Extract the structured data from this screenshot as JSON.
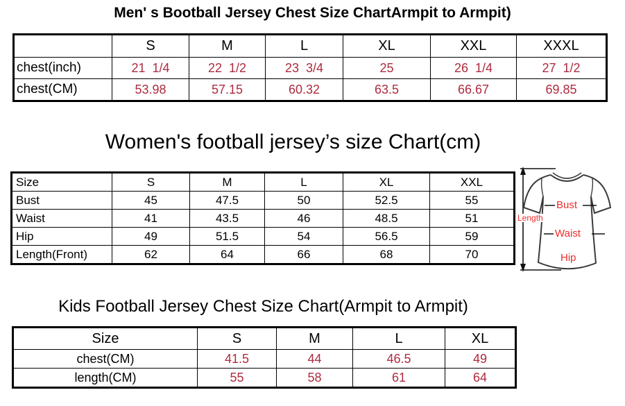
{
  "colors": {
    "table_value_red": "#AE2B3E",
    "diagram_label_red": "#EE2B28",
    "text_black": "#000000",
    "border_black": "#000000"
  },
  "chart_data": [
    {
      "type": "table",
      "title": "Men' s Bootball Jersey Chest Size ChartArmpit to Armpit)",
      "columns": [
        "",
        "S",
        "M",
        "L",
        "XL",
        "XXL",
        "XXXL"
      ],
      "rows": [
        {
          "label": "chest(inch)",
          "values": [
            "21  1/4",
            "22  1/2",
            "23  3/4",
            "25",
            "26  1/4",
            "27  1/2"
          ]
        },
        {
          "label": "chest(CM)",
          "values": [
            "53.98",
            "57.15",
            "60.32",
            "63.5",
            "66.67",
            "69.85"
          ]
        }
      ],
      "value_color": "#AE2B3E"
    },
    {
      "type": "table",
      "title": "Women's football jersey’s size Chart(cm)",
      "columns": [
        "Size",
        "S",
        "M",
        "L",
        "XL",
        "XXL"
      ],
      "rows": [
        {
          "label": "Bust",
          "values": [
            "45",
            "47.5",
            "50",
            "52.5",
            "55"
          ]
        },
        {
          "label": "Waist",
          "values": [
            "41",
            "43.5",
            "46",
            "48.5",
            "51"
          ]
        },
        {
          "label": "Hip",
          "values": [
            "49",
            "51.5",
            "54",
            "56.5",
            "59"
          ]
        },
        {
          "label": "Length(Front)",
          "values": [
            "62",
            "64",
            "66",
            "68",
            "70"
          ]
        }
      ],
      "value_color": "#000000"
    },
    {
      "type": "table",
      "title": "Kids Football Jersey Chest Size Chart(Armpit to Armpit)",
      "columns": [
        "Size",
        "S",
        "M",
        "L",
        "XL"
      ],
      "rows": [
        {
          "label": "chest(CM)",
          "values": [
            "41.5",
            "44",
            "46.5",
            "49"
          ]
        },
        {
          "label": "length(CM)",
          "values": [
            "55",
            "58",
            "61",
            "64"
          ]
        }
      ],
      "value_color": "#AE2B3E"
    }
  ],
  "diagram": {
    "length_label": "Length",
    "bust_label": "Bust",
    "waist_label": "Waist",
    "hip_label": "Hip"
  }
}
